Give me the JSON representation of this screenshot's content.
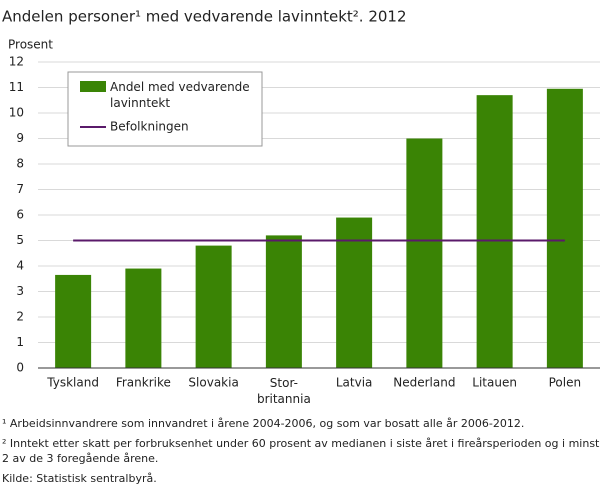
{
  "chart_data": {
    "type": "bar",
    "title": "Andelen personer¹ med vedvarende lavinntekt². 2012",
    "y_label": "Prosent",
    "categories": [
      "Tyskland",
      "Frankrike",
      "Slovakia",
      "Stor-britannia",
      "Latvia",
      "Nederland",
      "Litauen",
      "Polen"
    ],
    "series": [
      {
        "name": "Andel med vedvarende lavinntekt",
        "color": "#3a8405",
        "values": [
          3.65,
          3.9,
          4.8,
          5.2,
          5.9,
          9.0,
          10.7,
          10.95
        ]
      }
    ],
    "reference_line": {
      "name": "Befolkningen",
      "value": 5,
      "color": "#5a1a6a"
    },
    "ylim": [
      0,
      12
    ],
    "yticks": [
      0,
      1,
      2,
      3,
      4,
      5,
      6,
      7,
      8,
      9,
      10,
      11,
      12
    ],
    "grid": true,
    "legend": "top-left"
  },
  "notes": [
    "¹ Arbeidsinnvandrere som innvandret i årene 2004-2006, og som var bosatt alle år 2006-2012.",
    "² Inntekt etter skatt per forbruksenhet under 60 prosent av medianen i siste året i fireårsperioden og i minst 2 av de 3 foregående årene.",
    "Kilde: Statistisk sentralbyrå."
  ]
}
